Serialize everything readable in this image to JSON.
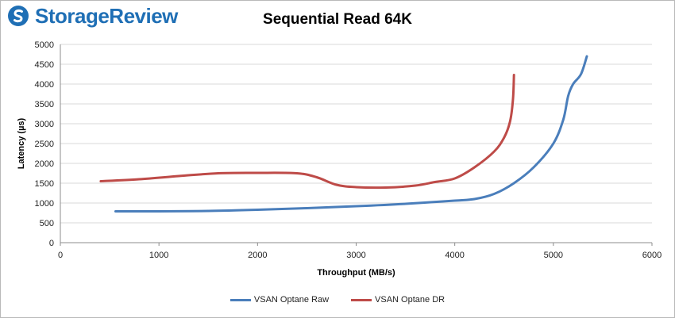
{
  "logo": {
    "text": "StorageReview"
  },
  "chart_data": {
    "type": "line",
    "title": "Sequential Read 64K",
    "xlabel": "Throughput (MB/s)",
    "ylabel": "Latency (µs)",
    "xlim": [
      0,
      6000
    ],
    "ylim": [
      0,
      5000
    ],
    "xticks": [
      0,
      1000,
      2000,
      3000,
      4000,
      5000,
      6000
    ],
    "yticks": [
      0,
      500,
      1000,
      1500,
      2000,
      2500,
      3000,
      3500,
      4000,
      4500,
      5000
    ],
    "grid": "horizontal",
    "legend_position": "bottom",
    "series": [
      {
        "name": "VSAN Optane Raw",
        "color": "#4a7ebb",
        "points": [
          [
            560,
            790
          ],
          [
            1000,
            790
          ],
          [
            1500,
            800
          ],
          [
            2000,
            830
          ],
          [
            2500,
            870
          ],
          [
            3000,
            920
          ],
          [
            3500,
            980
          ],
          [
            4000,
            1060
          ],
          [
            4200,
            1100
          ],
          [
            4400,
            1230
          ],
          [
            4600,
            1500
          ],
          [
            4800,
            1900
          ],
          [
            5000,
            2500
          ],
          [
            5100,
            3100
          ],
          [
            5150,
            3700
          ],
          [
            5200,
            4000
          ],
          [
            5280,
            4250
          ],
          [
            5340,
            4700
          ]
        ]
      },
      {
        "name": "VSAN Optane DR",
        "color": "#be4b48",
        "points": [
          [
            410,
            1550
          ],
          [
            800,
            1600
          ],
          [
            1200,
            1680
          ],
          [
            1600,
            1750
          ],
          [
            2000,
            1760
          ],
          [
            2400,
            1750
          ],
          [
            2600,
            1650
          ],
          [
            2800,
            1460
          ],
          [
            3000,
            1400
          ],
          [
            3300,
            1390
          ],
          [
            3600,
            1440
          ],
          [
            3800,
            1530
          ],
          [
            4000,
            1620
          ],
          [
            4200,
            1900
          ],
          [
            4400,
            2300
          ],
          [
            4500,
            2650
          ],
          [
            4560,
            3050
          ],
          [
            4590,
            3600
          ],
          [
            4600,
            4230
          ]
        ]
      }
    ]
  }
}
